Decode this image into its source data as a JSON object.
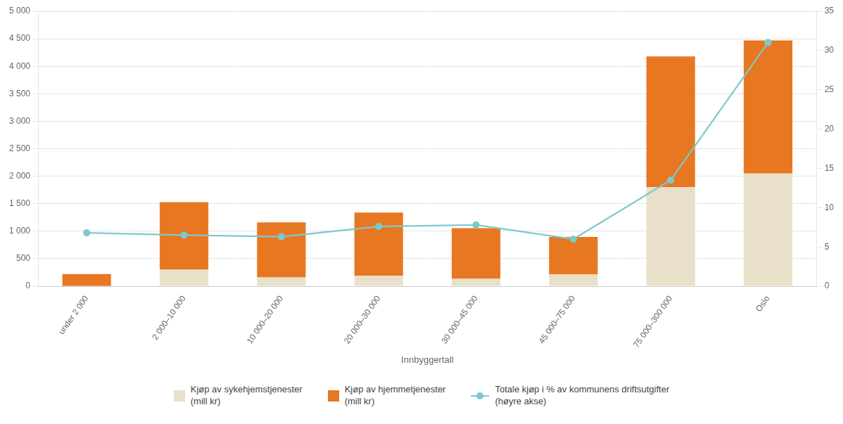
{
  "chart_data": {
    "type": "bar",
    "categories": [
      "under 2 000",
      "2 000–10 000",
      "10 000–20 000",
      "20 000–30 000",
      "30 000–45 000",
      "45 000–75 000",
      "75 000–300 000",
      "Oslo"
    ],
    "xlabel": "Innbyggertall",
    "stacked": true,
    "grid": true,
    "legend": "bottom",
    "series": [
      {
        "name": "Kjøp av sykehjemstjenester\n(mill kr)",
        "color": "#e8e0c8",
        "values": [
          5,
          300,
          160,
          190,
          135,
          215,
          1800,
          2050
        ]
      },
      {
        "name": "Kjøp av hjemmetjenester\n(mill kr)",
        "color": "#e87722",
        "values": [
          215,
          1230,
          1000,
          1150,
          920,
          680,
          2380,
          2420
        ]
      },
      {
        "name": "Totale kjøp i % av kommunens driftsutgifter\n(høyre akse)",
        "color": "#7ec8cc",
        "type": "line",
        "marker": "circle",
        "axis": "y2",
        "values": [
          6.8,
          6.5,
          6.3,
          7.6,
          7.8,
          6.0,
          13.5,
          31.0
        ]
      }
    ],
    "ylim": [
      0,
      5000
    ],
    "yticks": [
      0,
      500,
      {
        "value": 1000,
        "label": "1 000"
      },
      {
        "value": 1500,
        "label": "1 500"
      },
      {
        "value": 2000,
        "label": "2 000"
      },
      {
        "value": 2500,
        "label": "2 500"
      },
      {
        "value": 3000,
        "label": "3 000"
      },
      {
        "value": 3500,
        "label": "3 500"
      },
      {
        "value": 4000,
        "label": "4 000"
      },
      {
        "value": 4500,
        "label": "4 500"
      },
      {
        "value": 5000,
        "label": "5 000"
      }
    ],
    "y2lim": [
      0,
      35
    ],
    "y2ticks": [
      0,
      5,
      10,
      15,
      20,
      25,
      30,
      35
    ]
  }
}
